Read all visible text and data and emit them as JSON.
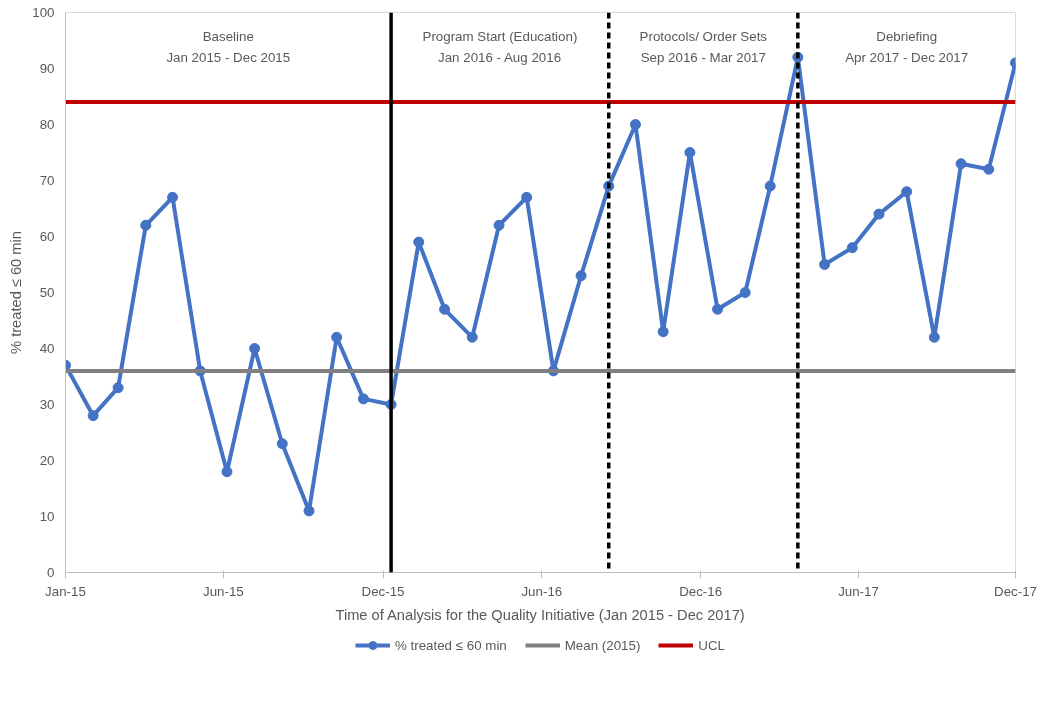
{
  "chart_data": {
    "type": "line",
    "xlabel": "Time of Analysis for the Quality Initiative (Jan 2015 - Dec 2017)",
    "ylabel": "% treated ≤ 60 min",
    "x": [
      "2015-01",
      "2015-02",
      "2015-03",
      "2015-04",
      "2015-05",
      "2015-06",
      "2015-07",
      "2015-08",
      "2015-09",
      "2015-10",
      "2015-11",
      "2015-12",
      "2016-01",
      "2016-02",
      "2016-03",
      "2016-04",
      "2016-05",
      "2016-06",
      "2016-07",
      "2016-08",
      "2016-09",
      "2016-10",
      "2016-11",
      "2016-12",
      "2017-01",
      "2017-02",
      "2017-03",
      "2017-04",
      "2017-05",
      "2017-06",
      "2017-07",
      "2017-08",
      "2017-09",
      "2017-10",
      "2017-11",
      "2017-12"
    ],
    "series": [
      {
        "name": "% treated ≤ 60 min",
        "color": "#4472c4",
        "marker": "circle",
        "values": [
          37,
          28,
          33,
          62,
          67,
          36,
          18,
          40,
          23,
          11,
          42,
          31,
          30,
          59,
          47,
          42,
          62,
          67,
          36,
          53,
          69,
          80,
          43,
          75,
          47,
          50,
          69,
          92,
          55,
          58,
          64,
          68,
          42,
          73,
          72,
          91
        ]
      },
      {
        "name": "Mean (2015)",
        "color": "#808080",
        "marker": "none",
        "x": [
          "2015-01",
          "2017-12"
        ],
        "values": [
          36,
          36
        ]
      },
      {
        "name": "UCL",
        "color": "#c00000",
        "marker": "none",
        "x": [
          "2015-01",
          "2017-12"
        ],
        "values": [
          84,
          84
        ]
      }
    ],
    "ref_lines": [
      {
        "axis": "x",
        "value": "2016-01",
        "color": "#000000",
        "line_style": "solid"
      },
      {
        "axis": "x",
        "value": "2016-09",
        "color": "#000000",
        "line_style": "dashed"
      },
      {
        "axis": "x",
        "value": "2017-04",
        "color": "#000000",
        "line_style": "dashed"
      }
    ],
    "annotations": [
      "Baseline\nJan 2015 - Dec 2015",
      "Program Start (Education)\nJan 2016 - Aug 2016",
      "Protocols/ Order Sets\nSep 2016 - Mar 2017",
      "Debriefing\nApr 2017 - Dec 2017"
    ],
    "xlim": [
      "2015-01",
      "2017-12"
    ],
    "xticks": [
      {
        "value": "2015-01-01",
        "label": "Jan-15"
      },
      {
        "value": "2015-06-27",
        "label": "Jun-15"
      },
      {
        "value": "2015-12-23",
        "label": "Dec-15"
      },
      {
        "value": "2016-06-18",
        "label": "Jun-16"
      },
      {
        "value": "2016-12-13",
        "label": "Dec-16"
      },
      {
        "value": "2017-06-08",
        "label": "Jun-17"
      },
      {
        "value": "2017-12-01",
        "label": "Dec-17"
      }
    ],
    "ylim": [
      0,
      100
    ],
    "yticks": [
      0,
      10,
      20,
      30,
      40,
      50,
      60,
      70,
      80,
      90,
      100
    ],
    "grid": false,
    "legend": "bottom"
  }
}
